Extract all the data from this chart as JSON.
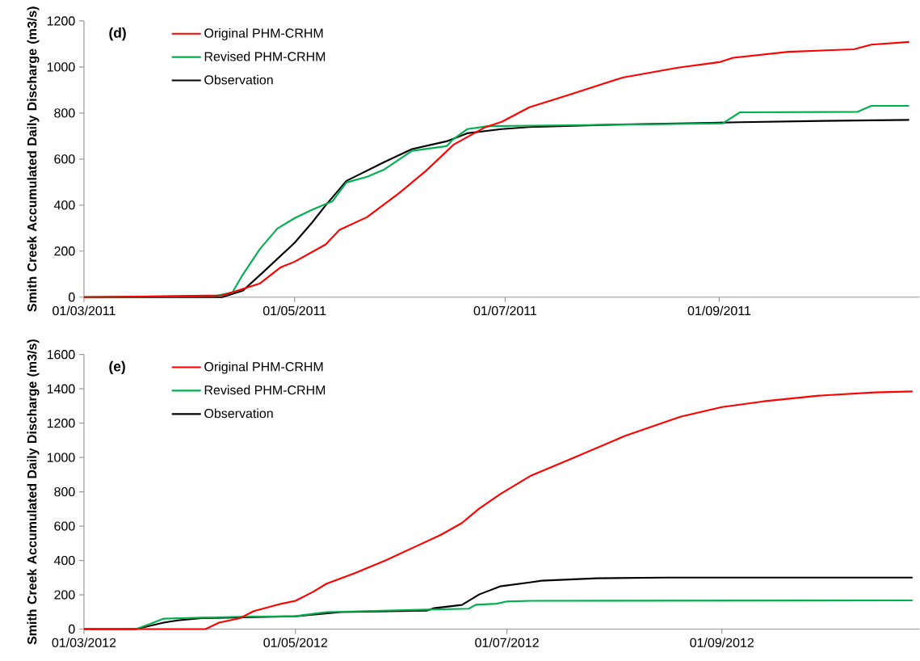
{
  "chart_data": [
    {
      "type": "line",
      "ylabel": "Smith Creek Accumulated Daily Discharge (m3/s)",
      "annotations": [
        "(d)"
      ],
      "legend": "top left",
      "xlim": [
        "2011-03-01",
        "2011-10-29"
      ],
      "ylim": [
        0,
        1200
      ],
      "yticks": [
        0,
        200,
        400,
        600,
        800,
        1000,
        1200
      ],
      "xticks": [
        {
          "value": "2011-03-01",
          "label": "01/03/2011"
        },
        {
          "value": "2011-05-01",
          "label": "01/05/2011"
        },
        {
          "value": "2011-07-01",
          "label": "01/07/2011"
        },
        {
          "value": "2011-09-01",
          "label": "01/09/2011"
        }
      ],
      "series": [
        {
          "name": "Original PHM-CRHM",
          "color": "#ff0000",
          "x": [
            "2011-03-01",
            "2011-03-21",
            "2011-04-10",
            "2011-04-12",
            "2011-04-21",
            "2011-04-27",
            "2011-05-01",
            "2011-05-10",
            "2011-05-14",
            "2011-05-22",
            "2011-05-31",
            "2011-06-08",
            "2011-06-16",
            "2011-06-25",
            "2011-06-30",
            "2011-07-08",
            "2011-07-19",
            "2011-08-04",
            "2011-08-20",
            "2011-09-01",
            "2011-09-05",
            "2011-09-21",
            "2011-10-10",
            "2011-10-15",
            "2011-10-26"
          ],
          "values": [
            0,
            3,
            8,
            17,
            60,
            130,
            154,
            229,
            292,
            348,
            449,
            548,
            662,
            737,
            762,
            825,
            877,
            954,
            997,
            1021,
            1040,
            1066,
            1077,
            1097,
            1109
          ]
        },
        {
          "name": "Revised PHM-CRHM",
          "color": "#00b050",
          "x": [
            "2011-03-01",
            "2011-04-08",
            "2011-04-13",
            "2011-04-16",
            "2011-04-21",
            "2011-04-26",
            "2011-05-01",
            "2011-05-06",
            "2011-05-12",
            "2011-05-16",
            "2011-05-22",
            "2011-05-27",
            "2011-06-04",
            "2011-06-14",
            "2011-06-16",
            "2011-06-20",
            "2011-06-26",
            "2011-07-09",
            "2011-08-17",
            "2011-09-02",
            "2011-09-07",
            "2011-10-11",
            "2011-10-15",
            "2011-10-26"
          ],
          "values": [
            0,
            5,
            21,
            98,
            210,
            298,
            343,
            379,
            417,
            498,
            523,
            555,
            636,
            656,
            687,
            730,
            743,
            745,
            752,
            755,
            803,
            805,
            831,
            831
          ]
        },
        {
          "name": "Observation",
          "color": "#000000",
          "x": [
            "2011-03-01",
            "2011-04-10",
            "2011-04-16",
            "2011-04-22",
            "2011-05-01",
            "2011-05-06",
            "2011-05-10",
            "2011-05-16",
            "2011-05-27",
            "2011-06-04",
            "2011-06-14",
            "2011-06-20",
            "2011-06-30",
            "2011-07-08",
            "2011-08-03",
            "2011-08-23",
            "2011-09-07",
            "2011-09-27",
            "2011-10-26"
          ],
          "values": [
            0,
            0,
            28,
            110,
            236,
            323,
            399,
            505,
            587,
            643,
            677,
            712,
            730,
            739,
            750,
            755,
            760,
            765,
            770
          ]
        }
      ]
    },
    {
      "type": "line",
      "ylabel": "Smith Creek Accumulated Daily Discharge (m3/s)",
      "annotations": [
        "(e)"
      ],
      "legend": "top left",
      "xlim": [
        "2012-03-01",
        "2012-10-28"
      ],
      "ylim": [
        0,
        1600
      ],
      "yticks": [
        0,
        200,
        400,
        600,
        800,
        1000,
        1200,
        1400,
        1600
      ],
      "xticks": [
        {
          "value": "2012-03-01",
          "label": "01/03/2012"
        },
        {
          "value": "2012-05-01",
          "label": "01/05/2012"
        },
        {
          "value": "2012-07-01",
          "label": "01/07/2012"
        },
        {
          "value": "2012-09-01",
          "label": "01/09/2012"
        }
      ],
      "series": [
        {
          "name": "Original PHM-CRHM",
          "color": "#ff0000",
          "x": [
            "2012-03-01",
            "2012-04-05",
            "2012-04-09",
            "2012-04-15",
            "2012-04-19",
            "2012-04-27",
            "2012-05-01",
            "2012-05-06",
            "2012-05-10",
            "2012-05-18",
            "2012-05-27",
            "2012-06-04",
            "2012-06-12",
            "2012-06-18",
            "2012-06-23",
            "2012-06-29",
            "2012-07-08",
            "2012-07-19",
            "2012-08-04",
            "2012-08-20",
            "2012-09-01",
            "2012-09-13",
            "2012-09-29",
            "2012-10-15",
            "2012-10-26"
          ],
          "values": [
            0,
            0,
            38,
            64,
            105,
            148,
            165,
            216,
            265,
            325,
            400,
            475,
            550,
            618,
            702,
            786,
            895,
            988,
            1125,
            1237,
            1294,
            1327,
            1360,
            1379,
            1385
          ]
        },
        {
          "name": "Revised PHM-CRHM",
          "color": "#00b050",
          "x": [
            "2012-03-01",
            "2012-03-16",
            "2012-03-20",
            "2012-03-24",
            "2012-04-02",
            "2012-04-15",
            "2012-05-01",
            "2012-05-06",
            "2012-05-10",
            "2012-06-08",
            "2012-06-20",
            "2012-06-22",
            "2012-06-28",
            "2012-07-01",
            "2012-07-08",
            "2012-10-26"
          ],
          "values": [
            0,
            0,
            30,
            61,
            66,
            72,
            75,
            89,
            99,
            114,
            119,
            142,
            148,
            161,
            165,
            167
          ]
        },
        {
          "name": "Observation",
          "color": "#000000",
          "x": [
            "2012-03-01",
            "2012-03-16",
            "2012-03-24",
            "2012-03-28",
            "2012-04-04",
            "2012-05-01",
            "2012-05-14",
            "2012-06-08",
            "2012-06-10",
            "2012-06-18",
            "2012-06-23",
            "2012-06-29",
            "2012-07-08",
            "2012-07-11",
            "2012-07-27",
            "2012-08-16",
            "2012-10-26"
          ],
          "values": [
            0,
            0,
            38,
            51,
            64,
            75,
            99,
            108,
            122,
            141,
            202,
            249,
            273,
            282,
            296,
            300,
            300
          ]
        }
      ]
    }
  ]
}
